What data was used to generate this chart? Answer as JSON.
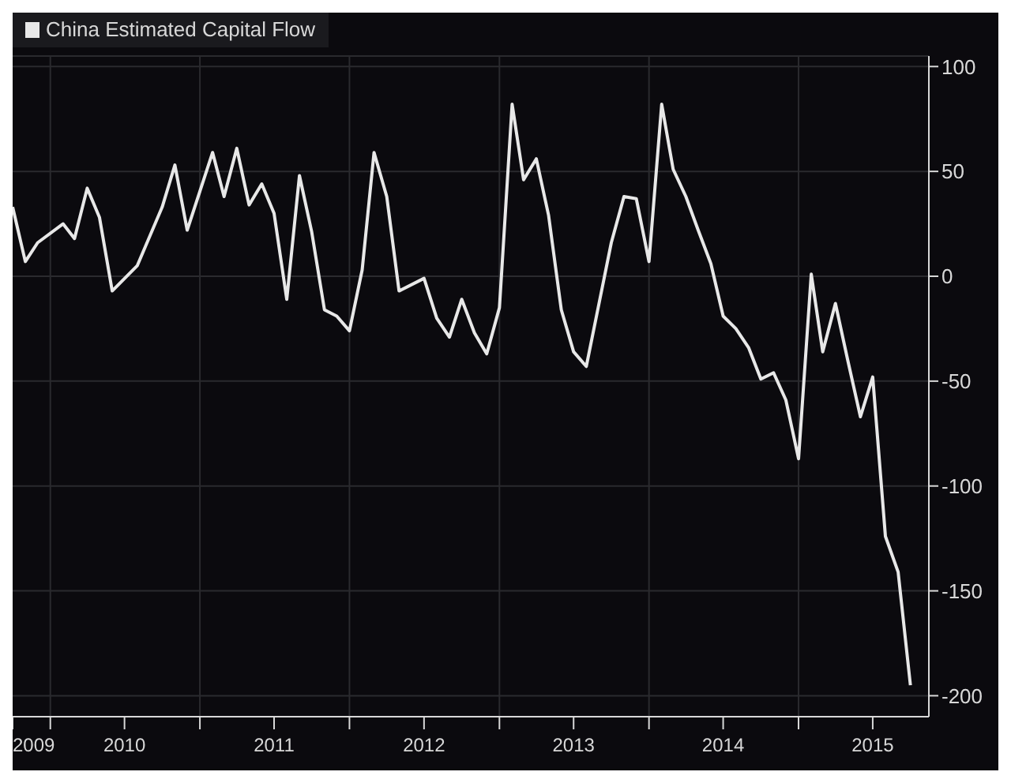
{
  "chart_data": {
    "type": "line",
    "x": [
      "2009-10",
      "2009-11",
      "2009-12",
      "2010-02",
      "2010-03",
      "2010-04",
      "2010-05",
      "2010-06",
      "2010-08",
      "2010-10",
      "2010-11",
      "2010-12",
      "2011-02",
      "2011-03",
      "2011-04",
      "2011-05",
      "2011-06",
      "2011-07",
      "2011-08",
      "2011-09",
      "2011-10",
      "2011-11",
      "2011-12",
      "2012-01",
      "2012-02",
      "2012-03",
      "2012-04",
      "2012-05",
      "2012-07",
      "2012-08",
      "2012-09",
      "2012-10",
      "2012-11",
      "2012-12",
      "2013-01",
      "2013-02",
      "2013-03",
      "2013-04",
      "2013-05",
      "2013-06",
      "2013-07",
      "2013-08",
      "2013-10",
      "2013-11",
      "2013-12",
      "2014-01",
      "2014-02",
      "2014-03",
      "2014-04",
      "2014-05",
      "2014-06",
      "2014-07",
      "2014-08",
      "2014-09",
      "2014-10",
      "2014-11",
      "2014-12",
      "2015-01",
      "2015-02",
      "2015-03",
      "2015-04",
      "2015-05",
      "2015-06",
      "2015-07",
      "2015-08",
      "2015-09",
      "2015-10"
    ],
    "series": [
      {
        "name": "China Estimated Capital Flow",
        "color": "#e8e8e8",
        "values": [
          33,
          7,
          16,
          25,
          18,
          42,
          28,
          -7,
          5,
          33,
          53,
          22,
          59,
          38,
          61,
          34,
          44,
          30,
          -11,
          48,
          21,
          -16,
          -19,
          -26,
          3,
          59,
          38,
          -7,
          -1,
          -20,
          -29,
          -11,
          -27,
          -37,
          -15,
          82,
          46,
          56,
          29,
          -16,
          -36,
          -43,
          16,
          38,
          37,
          7,
          82,
          51,
          38,
          22,
          6,
          -19,
          -25,
          -34,
          -49,
          -46,
          -59,
          -87,
          1,
          -36,
          -13,
          -40,
          -67,
          -48,
          -124,
          -141,
          -195
        ]
      }
    ],
    "xlim": [
      "2009-10",
      "2015-11-15"
    ],
    "xticks": [
      {
        "value": "2009-10",
        "label": "2009"
      },
      {
        "value": "2010-01",
        "label": null
      },
      {
        "value": "2010-07",
        "label": "2010"
      },
      {
        "value": "2011-01",
        "label": null
      },
      {
        "value": "2011-07",
        "label": "2011"
      },
      {
        "value": "2012-01",
        "label": null
      },
      {
        "value": "2012-07",
        "label": "2012"
      },
      {
        "value": "2013-01",
        "label": null
      },
      {
        "value": "2013-07",
        "label": "2013"
      },
      {
        "value": "2014-01",
        "label": null
      },
      {
        "value": "2014-07",
        "label": "2014"
      },
      {
        "value": "2015-01",
        "label": null
      },
      {
        "value": "2015-07",
        "label": "2015"
      }
    ],
    "ylim": [
      -210,
      105
    ],
    "yticks": [
      100,
      50,
      0,
      -50,
      -100,
      -150,
      -200
    ],
    "grid": true,
    "legend": "top left",
    "marker": "none",
    "line_style": "solid"
  }
}
